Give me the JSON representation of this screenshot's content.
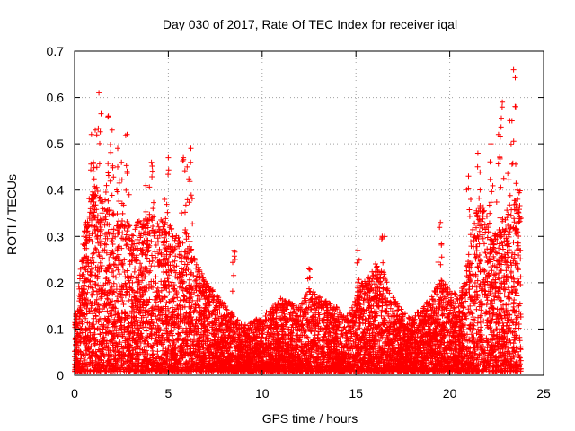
{
  "chart_data": {
    "type": "scatter",
    "title": "Day 030 of 2017, Rate Of TEC Index for receiver iqal",
    "xlabel": "GPS time / hours",
    "ylabel": "ROTI / TECUs",
    "xlim": [
      0,
      25
    ],
    "ylim": [
      0,
      0.7
    ],
    "xticks": [
      0,
      5,
      10,
      15,
      20,
      25
    ],
    "yticks": [
      0,
      0.1,
      0.2,
      0.3,
      0.4,
      0.5,
      0.6,
      0.7
    ],
    "xtick_labels": [
      "0",
      "5",
      "10",
      "15",
      "20",
      "25"
    ],
    "ytick_labels": [
      "0",
      "0.1",
      "0.2",
      "0.3",
      "0.4",
      "0.5",
      "0.6",
      "0.7"
    ],
    "grid": true,
    "marker": "+",
    "color": "#ff0000",
    "x_data_range": [
      0,
      23.8
    ],
    "envelope": {
      "hours": [
        0,
        0.5,
        1,
        1.5,
        2,
        2.5,
        3,
        3.5,
        4,
        4.5,
        5,
        5.5,
        6,
        6.5,
        7,
        7.5,
        8,
        8.5,
        9,
        9.5,
        10,
        10.5,
        11,
        11.5,
        12,
        12.5,
        13,
        13.5,
        14,
        14.5,
        15,
        15.5,
        16,
        16.5,
        17,
        17.5,
        18,
        18.5,
        19,
        19.5,
        20,
        20.5,
        21,
        21.5,
        22,
        22.5,
        23,
        23.5,
        23.8
      ],
      "typical_max": [
        0.1,
        0.3,
        0.4,
        0.38,
        0.35,
        0.33,
        0.32,
        0.33,
        0.34,
        0.33,
        0.32,
        0.3,
        0.3,
        0.24,
        0.2,
        0.17,
        0.15,
        0.12,
        0.1,
        0.11,
        0.12,
        0.14,
        0.16,
        0.15,
        0.14,
        0.18,
        0.17,
        0.15,
        0.14,
        0.12,
        0.16,
        0.21,
        0.24,
        0.21,
        0.16,
        0.13,
        0.12,
        0.14,
        0.16,
        0.2,
        0.18,
        0.16,
        0.25,
        0.38,
        0.36,
        0.3,
        0.35,
        0.42,
        0.4
      ]
    },
    "highlights": [
      {
        "x": 0.6,
        "y": 0.33
      },
      {
        "x": 0.9,
        "y": 0.52
      },
      {
        "x": 1.0,
        "y": 0.46
      },
      {
        "x": 1.1,
        "y": 0.53
      },
      {
        "x": 1.3,
        "y": 0.61
      },
      {
        "x": 1.7,
        "y": 0.41
      },
      {
        "x": 1.8,
        "y": 0.56
      },
      {
        "x": 2.0,
        "y": 0.53
      },
      {
        "x": 2.3,
        "y": 0.49
      },
      {
        "x": 2.5,
        "y": 0.46
      },
      {
        "x": 2.8,
        "y": 0.52
      },
      {
        "x": 3.8,
        "y": 0.41
      },
      {
        "x": 4.1,
        "y": 0.46
      },
      {
        "x": 4.8,
        "y": 0.38
      },
      {
        "x": 5.0,
        "y": 0.47
      },
      {
        "x": 5.8,
        "y": 0.47
      },
      {
        "x": 6.0,
        "y": 0.45
      },
      {
        "x": 6.2,
        "y": 0.49
      },
      {
        "x": 8.5,
        "y": 0.27
      },
      {
        "x": 12.5,
        "y": 0.23
      },
      {
        "x": 15.1,
        "y": 0.27
      },
      {
        "x": 16.4,
        "y": 0.3
      },
      {
        "x": 19.5,
        "y": 0.33
      },
      {
        "x": 21.0,
        "y": 0.43
      },
      {
        "x": 21.5,
        "y": 0.48
      },
      {
        "x": 22.2,
        "y": 0.5
      },
      {
        "x": 22.6,
        "y": 0.52
      },
      {
        "x": 22.8,
        "y": 0.59
      },
      {
        "x": 23.2,
        "y": 0.55
      },
      {
        "x": 23.4,
        "y": 0.66
      },
      {
        "x": 23.6,
        "y": 0.4
      }
    ]
  }
}
